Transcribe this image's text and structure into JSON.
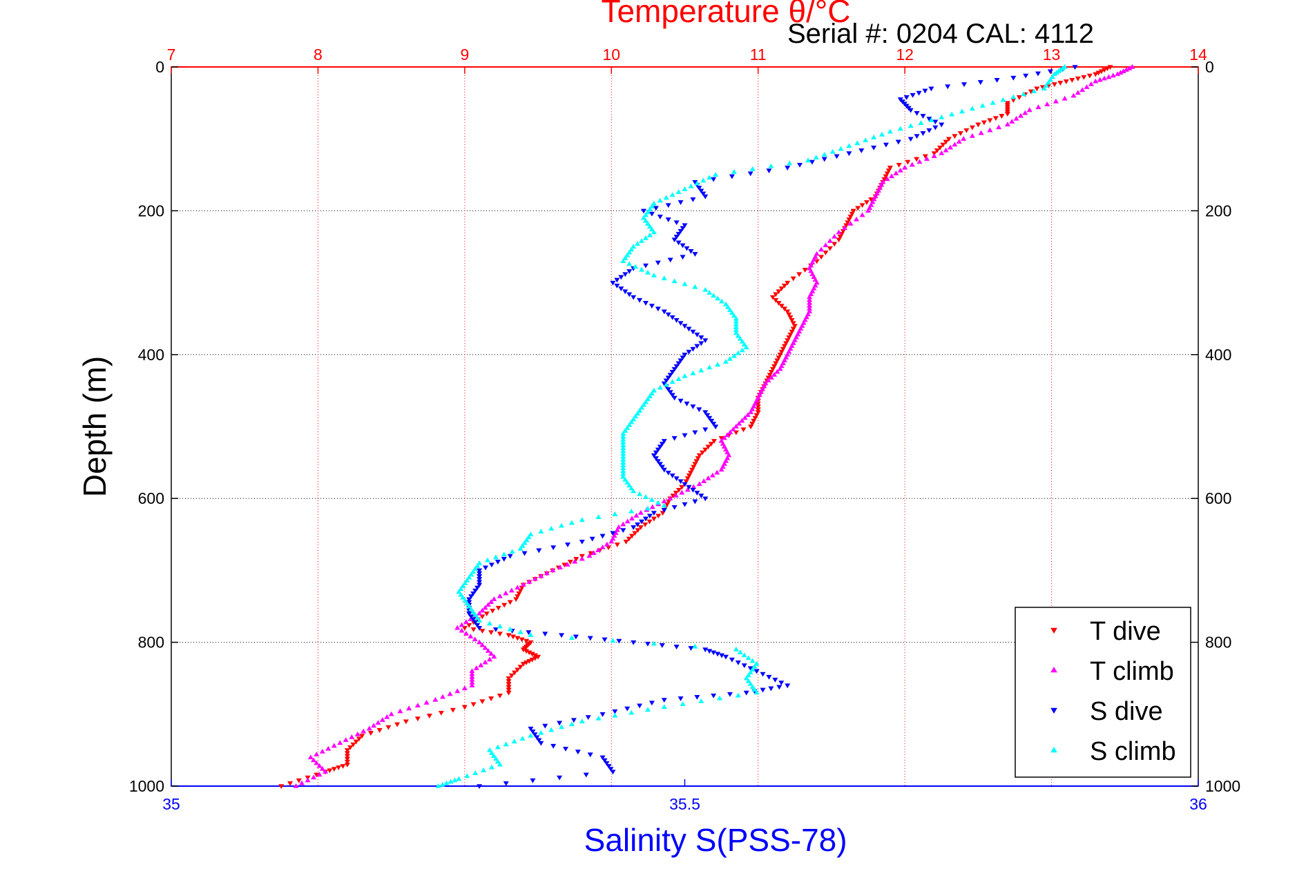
{
  "header": {
    "serial_text": "Serial #: 0204   CAL: 4112"
  },
  "chart_data": {
    "type": "scatter",
    "title_top_axis": "Temperature θ/°C",
    "xlabel": "Salinity S(PSS-78)",
    "ylabel": "Depth (m)",
    "grid": true,
    "legend_position": "bottom-right",
    "y_axis": {
      "range": [
        0,
        1000
      ],
      "reversed": true,
      "ticks": [
        0,
        200,
        400,
        600,
        800,
        1000
      ],
      "tick_labels": [
        "0",
        "200",
        "400",
        "600",
        "800",
        "1000"
      ]
    },
    "temperature_axis": {
      "range": [
        7,
        14
      ],
      "ticks": [
        7,
        8,
        9,
        10,
        11,
        12,
        13,
        14
      ],
      "tick_labels": [
        "7",
        "8",
        "9",
        "10",
        "11",
        "12",
        "13",
        "14"
      ],
      "color": "#ff0000"
    },
    "salinity_axis": {
      "range": [
        35,
        36
      ],
      "ticks": [
        35,
        35.5,
        36
      ],
      "tick_labels": [
        "35",
        "35.5",
        "36"
      ],
      "color": "#0000ff"
    },
    "series": [
      {
        "name": "T dive",
        "axis": "temperature",
        "color": "#ff0000",
        "marker": "triangle-down",
        "depth": [
          0,
          10,
          20,
          30,
          50,
          65,
          80,
          100,
          120,
          140,
          160,
          180,
          200,
          220,
          240,
          270,
          300,
          320,
          340,
          360,
          380,
          400,
          420,
          440,
          460,
          480,
          500,
          520,
          540,
          560,
          580,
          600,
          620,
          640,
          660,
          680,
          700,
          720,
          740,
          760,
          780,
          790,
          800,
          810,
          820,
          830,
          850,
          870,
          890,
          910,
          930,
          950,
          970,
          980,
          1000
        ],
        "temperature": [
          13.4,
          13.3,
          13.1,
          12.9,
          12.7,
          12.7,
          12.5,
          12.3,
          12.2,
          11.9,
          11.85,
          11.8,
          11.65,
          11.6,
          11.55,
          11.4,
          11.2,
          11.1,
          11.2,
          11.25,
          11.2,
          11.15,
          11.1,
          11.05,
          11.0,
          11.0,
          10.95,
          10.7,
          10.6,
          10.55,
          10.5,
          10.4,
          10.35,
          10.2,
          10.1,
          9.8,
          9.6,
          9.4,
          9.35,
          9.15,
          9.0,
          9.3,
          9.45,
          9.4,
          9.5,
          9.4,
          9.3,
          9.3,
          9.0,
          8.6,
          8.3,
          8.2,
          8.2,
          8.05,
          7.75
        ]
      },
      {
        "name": "T climb",
        "axis": "temperature",
        "color": "#ff00ff",
        "marker": "triangle-up",
        "depth": [
          0,
          10,
          20,
          40,
          60,
          80,
          100,
          120,
          140,
          160,
          180,
          200,
          230,
          260,
          280,
          300,
          320,
          340,
          360,
          380,
          400,
          420,
          440,
          460,
          480,
          500,
          520,
          540,
          560,
          580,
          600,
          620,
          640,
          660,
          680,
          700,
          720,
          740,
          760,
          780,
          800,
          820,
          840,
          860,
          880,
          900,
          920,
          940,
          960,
          980,
          1000
        ],
        "temperature": [
          13.55,
          13.45,
          13.3,
          13.15,
          12.85,
          12.7,
          12.4,
          12.25,
          12.0,
          11.85,
          11.8,
          11.75,
          11.55,
          11.4,
          11.35,
          11.4,
          11.35,
          11.35,
          11.3,
          11.25,
          11.2,
          11.15,
          11.05,
          11.0,
          10.95,
          10.85,
          10.75,
          10.8,
          10.75,
          10.6,
          10.4,
          10.2,
          10.05,
          10.0,
          9.85,
          9.6,
          9.4,
          9.2,
          9.1,
          8.95,
          9.1,
          9.2,
          9.05,
          9.05,
          8.8,
          8.5,
          8.35,
          8.15,
          7.95,
          8.05,
          7.85
        ]
      },
      {
        "name": "S dive",
        "axis": "salinity",
        "color": "#0000ff",
        "marker": "triangle-down",
        "depth": [
          0,
          15,
          30,
          45,
          60,
          80,
          100,
          120,
          140,
          160,
          180,
          200,
          220,
          240,
          260,
          280,
          300,
          320,
          340,
          360,
          380,
          400,
          420,
          440,
          460,
          480,
          500,
          520,
          540,
          560,
          580,
          600,
          620,
          640,
          660,
          680,
          700,
          720,
          740,
          760,
          780,
          790,
          800,
          810,
          820,
          840,
          860,
          870,
          880,
          900,
          920,
          940,
          960,
          980,
          1000
        ],
        "salinity": [
          35.88,
          35.82,
          35.74,
          35.71,
          35.72,
          35.75,
          35.72,
          35.66,
          35.6,
          35.51,
          35.52,
          35.46,
          35.5,
          35.49,
          35.51,
          35.45,
          35.43,
          35.45,
          35.48,
          35.5,
          35.52,
          35.5,
          35.49,
          35.48,
          35.49,
          35.52,
          35.53,
          35.48,
          35.47,
          35.48,
          35.5,
          35.52,
          35.47,
          35.45,
          35.4,
          35.33,
          35.3,
          35.3,
          35.29,
          35.29,
          35.3,
          35.38,
          35.45,
          35.52,
          35.54,
          35.57,
          35.6,
          35.56,
          35.48,
          35.42,
          35.35,
          35.36,
          35.42,
          35.43,
          35.3
        ]
      },
      {
        "name": "S climb",
        "axis": "salinity",
        "color": "#00ffff",
        "marker": "triangle-up",
        "depth": [
          0,
          10,
          30,
          50,
          70,
          90,
          110,
          130,
          150,
          170,
          190,
          210,
          230,
          250,
          270,
          290,
          310,
          330,
          350,
          370,
          390,
          410,
          430,
          450,
          470,
          490,
          510,
          530,
          550,
          570,
          590,
          610,
          630,
          650,
          670,
          690,
          710,
          730,
          750,
          770,
          790,
          810,
          830,
          850,
          870,
          890,
          910,
          930,
          950,
          970,
          990,
          1000
        ],
        "salinity": [
          35.87,
          35.86,
          35.85,
          35.8,
          35.75,
          35.7,
          35.66,
          35.62,
          35.53,
          35.5,
          35.47,
          35.46,
          35.47,
          35.45,
          35.44,
          35.47,
          35.52,
          35.54,
          35.55,
          35.55,
          35.56,
          35.54,
          35.5,
          35.47,
          35.46,
          35.45,
          35.44,
          35.44,
          35.44,
          35.44,
          35.45,
          35.48,
          35.4,
          35.35,
          35.34,
          35.3,
          35.29,
          35.28,
          35.29,
          35.3,
          35.35,
          35.55,
          35.57,
          35.56,
          35.57,
          35.48,
          35.4,
          35.35,
          35.31,
          35.32,
          35.28,
          35.26
        ]
      }
    ]
  }
}
